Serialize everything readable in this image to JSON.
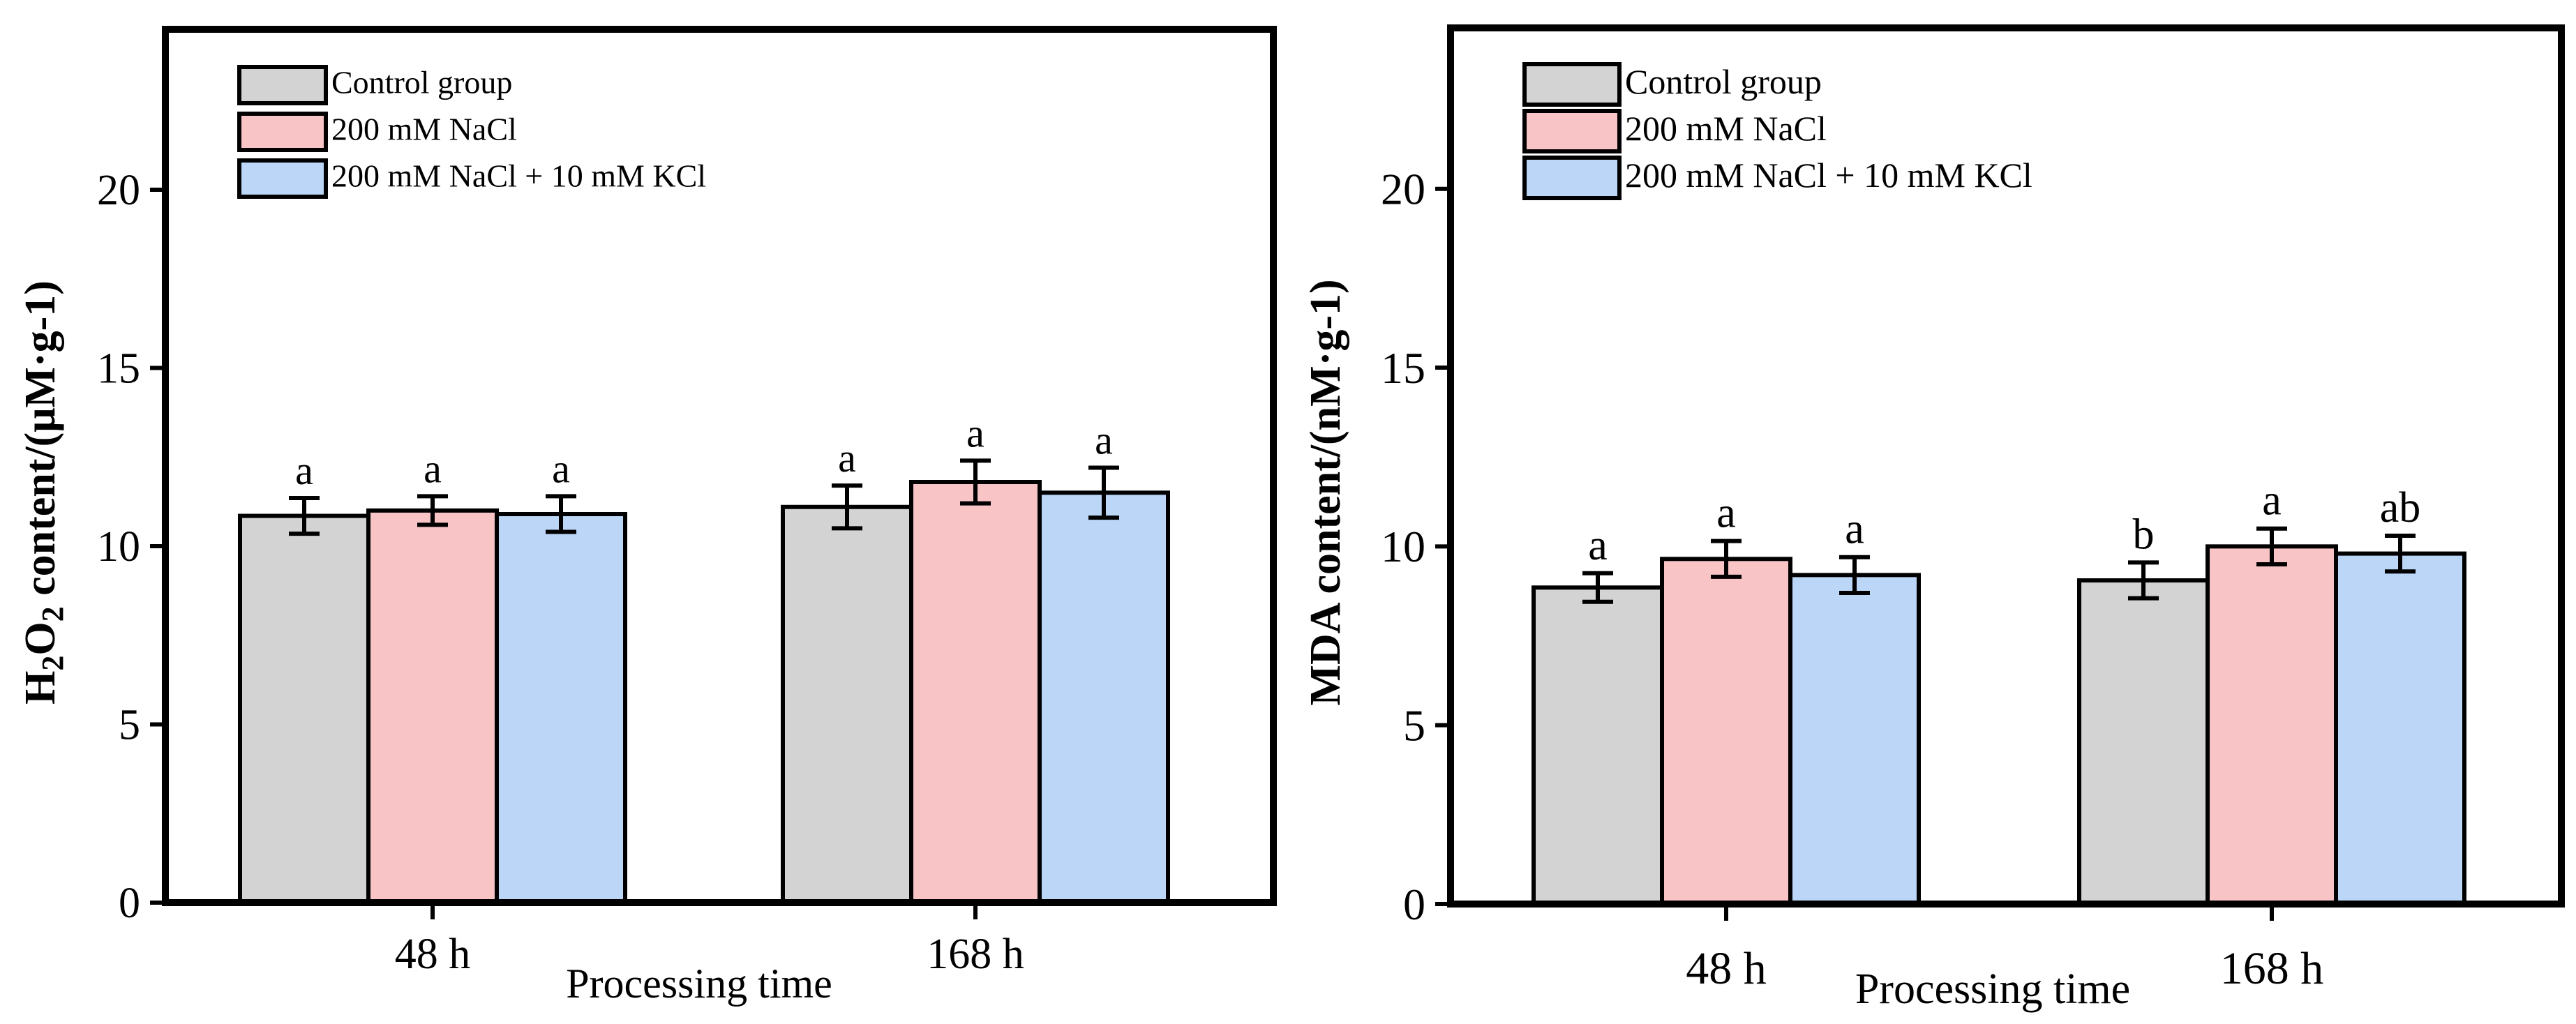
{
  "chart_data": [
    {
      "type": "bar",
      "ylabel_main": "H",
      "ylabel_sub1": "2",
      "ylabel_mid": "O",
      "ylabel_sub2": "2",
      "ylabel_rest": " content/(μM·g-1)",
      "xlabel": "Processing time",
      "categories": [
        "48 h",
        "168 h"
      ],
      "ylim": [
        0,
        24.5
      ],
      "yticks": [
        "0",
        "5",
        "10",
        "15",
        "20"
      ],
      "ytick_values": [
        0,
        5,
        10,
        15,
        20
      ],
      "series": [
        {
          "name": "Control group",
          "color": "#d3d3d3",
          "values": [
            10.85,
            11.1
          ],
          "errors": [
            0.5,
            0.6
          ],
          "letters": [
            "a",
            "a"
          ]
        },
        {
          "name": "200 mM NaCl",
          "color": "#f8c4c6",
          "values": [
            11.0,
            11.8
          ],
          "errors": [
            0.4,
            0.6
          ],
          "letters": [
            "a",
            "a"
          ]
        },
        {
          "name": "200 mM NaCl + 10 mM KCl",
          "color": "#bcd6f7",
          "values": [
            10.9,
            11.5
          ],
          "errors": [
            0.5,
            0.7
          ],
          "letters": [
            "a",
            "a"
          ]
        }
      ]
    },
    {
      "type": "bar",
      "ylabel": "MDA content/(nM·g-1)",
      "xlabel": "Processing time",
      "categories": [
        "48 h",
        "168 h"
      ],
      "ylim": [
        0,
        24.5
      ],
      "yticks": [
        "0",
        "5",
        "10",
        "15",
        "20"
      ],
      "ytick_values": [
        0,
        5,
        10,
        15,
        20
      ],
      "series": [
        {
          "name": "Control group",
          "color": "#d3d3d3",
          "values": [
            8.85,
            9.05
          ],
          "errors": [
            0.4,
            0.5
          ],
          "letters": [
            "a",
            "b"
          ]
        },
        {
          "name": "200 mM NaCl",
          "color": "#f8c4c6",
          "values": [
            9.65,
            10.0
          ],
          "errors": [
            0.5,
            0.5
          ],
          "letters": [
            "a",
            "a"
          ]
        },
        {
          "name": "200 mM NaCl + 10 mM KCl",
          "color": "#bcd6f7",
          "values": [
            9.2,
            9.8
          ],
          "errors": [
            0.5,
            0.5
          ],
          "letters": [
            "a",
            "ab"
          ]
        }
      ]
    }
  ]
}
